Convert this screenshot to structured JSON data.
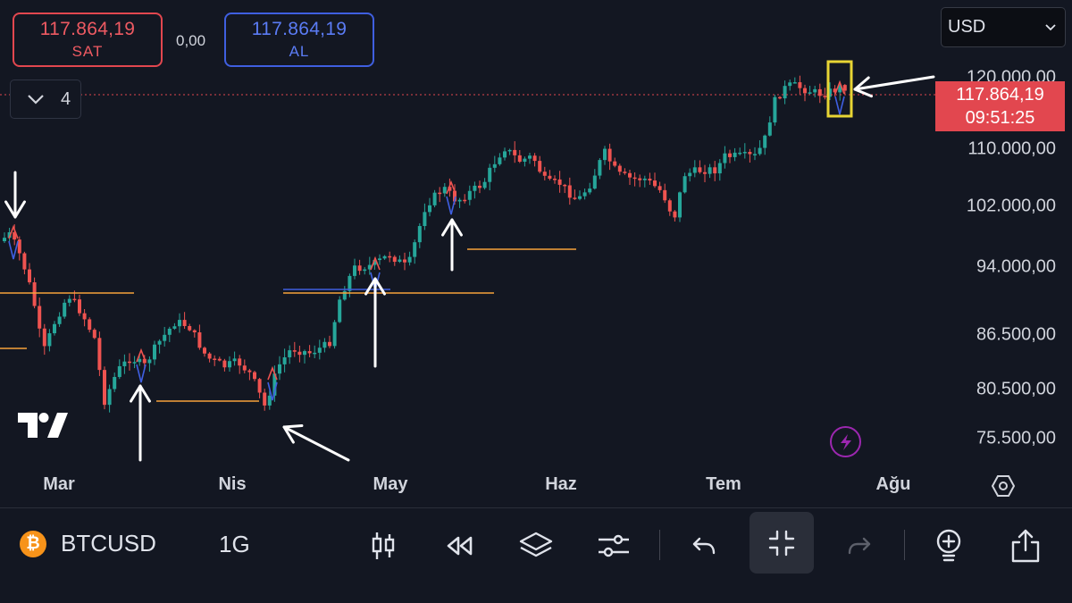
{
  "quote": {
    "sell_price": "117.864,19",
    "sell_label": "SAT",
    "spread": "0,00",
    "buy_price": "117.864,19",
    "buy_label": "AL"
  },
  "indicator_count": "4",
  "currency": "USD",
  "price_axis": [
    "120.000,00",
    "110.000,00",
    "102.000,00",
    "94.000,00",
    "86.500,00",
    "80.500,00",
    "75.500,00"
  ],
  "last_price": {
    "price": "117.864,19",
    "countdown": "09:51:25"
  },
  "time_axis": [
    "Mar",
    "Nis",
    "May",
    "Haz",
    "Tem",
    "Ağu"
  ],
  "toolbar": {
    "symbol": "BTCUSD",
    "interval": "1G",
    "symbol_icon": "bitcoin-icon"
  },
  "colors": {
    "up": "#26a69a",
    "down": "#ef5350",
    "accent_sell": "#e2474f",
    "accent_buy": "#3f5fe0",
    "level_orange": "#f7a23b",
    "level_blue": "#3f5fe0",
    "highlight": "#e8d534"
  }
}
